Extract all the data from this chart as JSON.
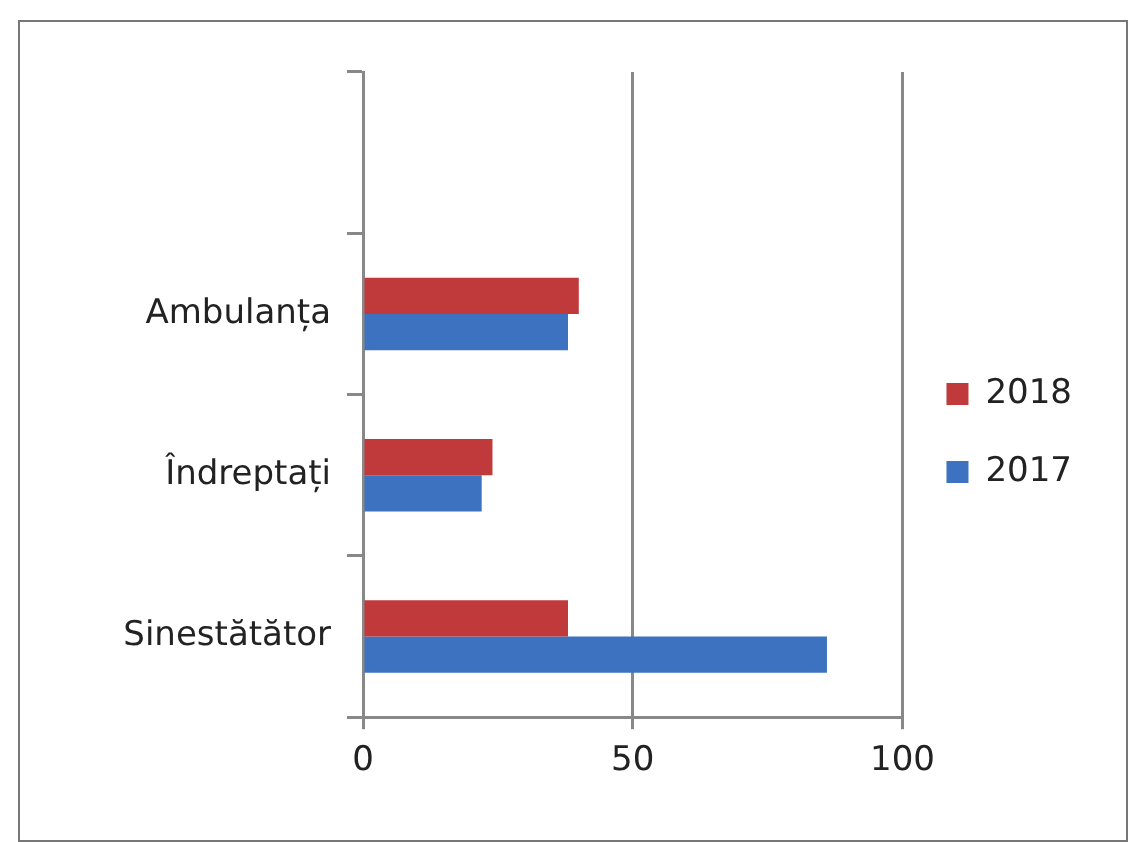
{
  "chart_data": {
    "type": "bar",
    "orientation": "horizontal",
    "categories": [
      null,
      "Ambulanța",
      "Îndreptați",
      "Sinestătător"
    ],
    "series": [
      {
        "name": "2018",
        "color": "#c0393b",
        "values": [
          null,
          40,
          24,
          38
        ]
      },
      {
        "name": "2017",
        "color": "#3c72bf",
        "values": [
          null,
          38,
          22,
          86
        ]
      }
    ],
    "xlim": [
      0,
      100
    ],
    "xticks": [
      0,
      50,
      100
    ],
    "grid": "x",
    "legend": "right"
  }
}
